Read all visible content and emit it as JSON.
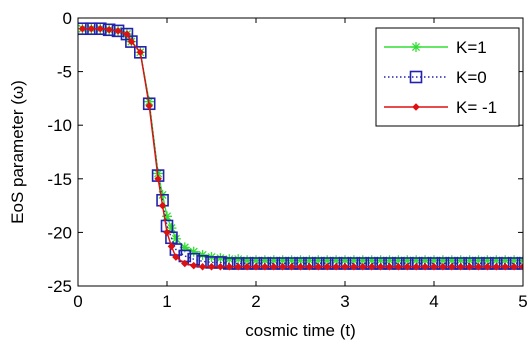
{
  "chart_data": {
    "type": "line",
    "title": "",
    "xlabel": "cosmic time (t)",
    "ylabel": "EoS  parameter (ω)",
    "xlim": [
      0,
      5
    ],
    "ylim": [
      -25,
      0
    ],
    "xticks": [
      0,
      1,
      2,
      3,
      4,
      5
    ],
    "yticks": [
      0,
      -5,
      -10,
      -15,
      -20,
      -25
    ],
    "grid": false,
    "legend_position": "top-right",
    "series": [
      {
        "name": "K=1",
        "color": "#33dd33",
        "marker": "asterisk",
        "line": "solid",
        "x": [
          0.05,
          0.15,
          0.25,
          0.35,
          0.45,
          0.55,
          0.6,
          0.7,
          0.8,
          0.9,
          0.95,
          1.0,
          1.05,
          1.1,
          1.2,
          1.3,
          1.4,
          1.5,
          1.6,
          1.7,
          1.8,
          1.9,
          2.0,
          2.1,
          2.2,
          2.3,
          2.4,
          2.5,
          2.6,
          2.7,
          2.8,
          2.9,
          3.0,
          3.1,
          3.2,
          3.3,
          3.4,
          3.5,
          3.6,
          3.7,
          3.8,
          3.9,
          4.0,
          4.1,
          4.2,
          4.3,
          4.4,
          4.5,
          4.6,
          4.7,
          4.8,
          4.9,
          5.0
        ],
        "y": [
          -1.0,
          -1.0,
          -1.0,
          -1.1,
          -1.2,
          -1.5,
          -2.2,
          -3.2,
          -7.8,
          -14.5,
          -16.5,
          -18.5,
          -19.6,
          -20.6,
          -21.4,
          -21.8,
          -22.1,
          -22.3,
          -22.4,
          -22.5,
          -22.5,
          -22.6,
          -22.6,
          -22.6,
          -22.6,
          -22.6,
          -22.6,
          -22.6,
          -22.6,
          -22.6,
          -22.6,
          -22.6,
          -22.6,
          -22.6,
          -22.6,
          -22.6,
          -22.6,
          -22.6,
          -22.6,
          -22.6,
          -22.6,
          -22.6,
          -22.6,
          -22.6,
          -22.6,
          -22.6,
          -22.6,
          -22.6,
          -22.6,
          -22.6,
          -22.6,
          -22.6,
          -22.6
        ]
      },
      {
        "name": "K=0",
        "color": "#2222aa",
        "marker": "square",
        "line": "dotted",
        "x": [
          0.05,
          0.15,
          0.25,
          0.35,
          0.45,
          0.55,
          0.6,
          0.7,
          0.8,
          0.9,
          0.95,
          1.0,
          1.05,
          1.1,
          1.2,
          1.3,
          1.4,
          1.5,
          1.6,
          1.7,
          1.8,
          1.9,
          2.0,
          2.1,
          2.2,
          2.3,
          2.4,
          2.5,
          2.6,
          2.7,
          2.8,
          2.9,
          3.0,
          3.1,
          3.2,
          3.3,
          3.4,
          3.5,
          3.6,
          3.7,
          3.8,
          3.9,
          4.0,
          4.1,
          4.2,
          4.3,
          4.4,
          4.5,
          4.6,
          4.7,
          4.8,
          4.9,
          5.0
        ],
        "y": [
          -1.0,
          -1.0,
          -1.0,
          -1.1,
          -1.2,
          -1.5,
          -2.2,
          -3.2,
          -8.0,
          -14.7,
          -17.0,
          -19.4,
          -20.5,
          -21.6,
          -22.2,
          -22.5,
          -22.7,
          -22.8,
          -22.8,
          -22.9,
          -22.9,
          -22.9,
          -22.9,
          -22.9,
          -22.9,
          -22.9,
          -22.9,
          -22.9,
          -22.9,
          -22.9,
          -22.9,
          -22.9,
          -22.9,
          -22.9,
          -22.9,
          -22.9,
          -22.9,
          -22.9,
          -22.9,
          -22.9,
          -22.9,
          -22.9,
          -22.9,
          -22.9,
          -22.9,
          -22.9,
          -22.9,
          -22.9,
          -22.9,
          -22.9,
          -22.9,
          -22.9,
          -22.9
        ]
      },
      {
        "name": "K= -1",
        "color": "#dd1111",
        "marker": "diamond",
        "line": "solid",
        "x": [
          0.05,
          0.15,
          0.25,
          0.35,
          0.45,
          0.55,
          0.6,
          0.7,
          0.8,
          0.9,
          0.95,
          1.0,
          1.05,
          1.1,
          1.2,
          1.3,
          1.4,
          1.5,
          1.6,
          1.7,
          1.8,
          1.9,
          2.0,
          2.1,
          2.2,
          2.3,
          2.4,
          2.5,
          2.6,
          2.7,
          2.8,
          2.9,
          3.0,
          3.1,
          3.2,
          3.3,
          3.4,
          3.5,
          3.6,
          3.7,
          3.8,
          3.9,
          4.0,
          4.1,
          4.2,
          4.3,
          4.4,
          4.5,
          4.6,
          4.7,
          4.8,
          4.9,
          5.0
        ],
        "y": [
          -1.0,
          -1.0,
          -1.0,
          -1.1,
          -1.2,
          -1.5,
          -2.2,
          -3.2,
          -8.2,
          -15.0,
          -17.5,
          -20.0,
          -21.3,
          -22.3,
          -22.9,
          -23.1,
          -23.2,
          -23.2,
          -23.2,
          -23.2,
          -23.2,
          -23.2,
          -23.2,
          -23.2,
          -23.2,
          -23.2,
          -23.2,
          -23.2,
          -23.2,
          -23.2,
          -23.2,
          -23.2,
          -23.2,
          -23.2,
          -23.2,
          -23.2,
          -23.2,
          -23.2,
          -23.2,
          -23.2,
          -23.2,
          -23.2,
          -23.2,
          -23.2,
          -23.2,
          -23.2,
          -23.2,
          -23.2,
          -23.2,
          -23.2,
          -23.2,
          -23.2,
          -23.2
        ]
      }
    ]
  }
}
